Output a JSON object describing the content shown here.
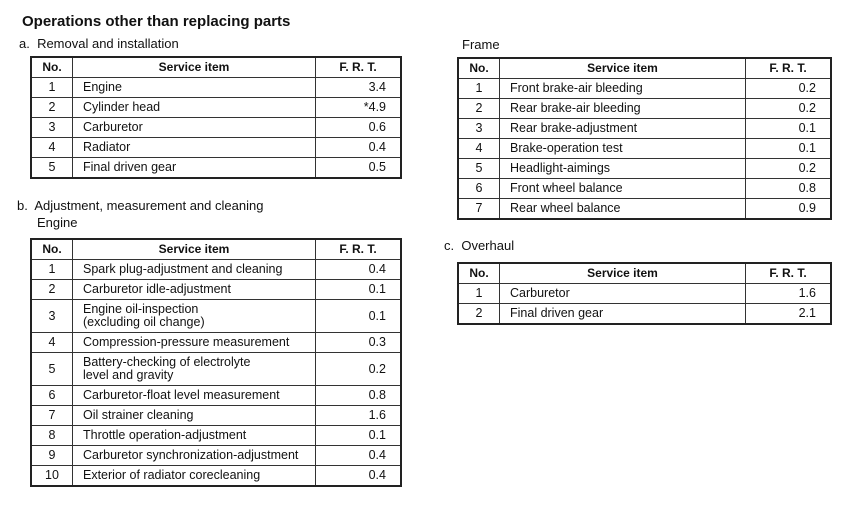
{
  "title": "Operations other than replacing parts",
  "removal": {
    "label": "a.  Removal and installation",
    "headers": [
      "No.",
      "Service item",
      "F. R. T."
    ],
    "rows": [
      [
        1,
        "Engine",
        3.4
      ],
      [
        2,
        "Cylinder head",
        "*4.9"
      ],
      [
        3,
        "Carburetor",
        0.6
      ],
      [
        4,
        "Radiator",
        0.4
      ],
      [
        5,
        "Final driven gear",
        0.5
      ]
    ]
  },
  "adjustment": {
    "label": "b.  Adjustment, measurement and cleaning",
    "sublabel": "Engine",
    "headers": [
      "No.",
      "Service item",
      "F. R. T."
    ],
    "rows": [
      [
        1,
        "Spark plug-adjustment and cleaning",
        0.4
      ],
      [
        2,
        "Carburetor idle-adjustment",
        0.1
      ],
      [
        3,
        "Engine oil-inspection\n (excluding oil change)",
        0.1
      ],
      [
        4,
        "Compression-pressure measurement",
        0.3
      ],
      [
        5,
        "Battery-checking of electrolyte\nlevel and gravity",
        0.2
      ],
      [
        6,
        "Carburetor-float level measurement",
        0.8
      ],
      [
        7,
        "Oil strainer cleaning",
        1.6
      ],
      [
        8,
        "Throttle operation-adjustment",
        0.1
      ],
      [
        9,
        "Carburetor synchronization-adjustment",
        0.4
      ],
      [
        10,
        "Exterior of radiator corecleaning",
        0.4
      ]
    ]
  },
  "frame": {
    "label": "Frame",
    "headers": [
      "No.",
      "Service item",
      "F. R. T."
    ],
    "rows": [
      [
        1,
        "Front brake-air bleeding",
        0.2
      ],
      [
        2,
        "Rear brake-air bleeding",
        0.2
      ],
      [
        3,
        "Rear brake-adjustment",
        0.1
      ],
      [
        4,
        "Brake-operation test",
        0.1
      ],
      [
        5,
        "Headlight-aimings",
        0.2
      ],
      [
        6,
        "Front wheel balance",
        0.8
      ],
      [
        7,
        "Rear wheel balance",
        0.9
      ]
    ]
  },
  "overhaul": {
    "label": "c.  Overhaul",
    "headers": [
      "No.",
      "Service item",
      "F. R. T."
    ],
    "rows": [
      [
        1,
        "Carburetor",
        1.6
      ],
      [
        2,
        "Final driven gear",
        2.1
      ]
    ]
  }
}
